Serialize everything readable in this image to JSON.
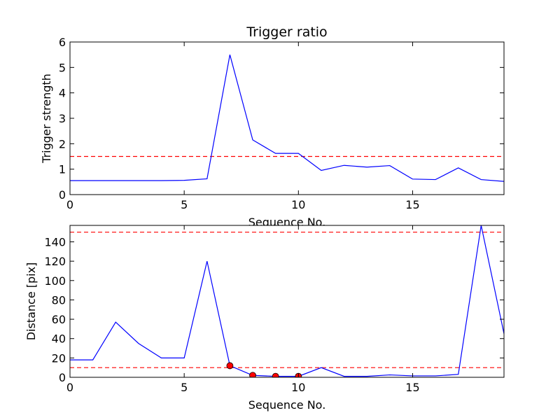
{
  "chart_data": [
    {
      "type": "line",
      "title": "Trigger ratio",
      "xlabel": "Sequence No.",
      "ylabel": "Trigger strength",
      "xlim": [
        0,
        19
      ],
      "ylim": [
        0,
        6
      ],
      "xticks": [
        0,
        5,
        10,
        15
      ],
      "yticks": [
        0,
        1,
        2,
        3,
        4,
        5,
        6
      ],
      "grid": false,
      "series": [
        {
          "color": "#0000ff",
          "x": [
            0,
            1,
            2,
            3,
            4,
            5,
            6,
            7,
            8,
            9,
            10,
            11,
            12,
            13,
            14,
            15,
            16,
            17,
            18,
            19
          ],
          "y": [
            0.55,
            0.55,
            0.55,
            0.55,
            0.55,
            0.56,
            0.62,
            5.5,
            2.15,
            1.62,
            1.62,
            0.95,
            1.15,
            1.08,
            1.14,
            0.61,
            0.59,
            1.05,
            0.59,
            0.52
          ]
        }
      ],
      "hlines": [
        {
          "y": 1.5,
          "color": "#ff0000",
          "style": "dashed"
        }
      ]
    },
    {
      "type": "line",
      "title": "",
      "xlabel": "Sequence No.",
      "ylabel": "Distance [pix]",
      "xlim": [
        0,
        19
      ],
      "ylim": [
        0,
        157
      ],
      "xticks": [
        0,
        5,
        10,
        15
      ],
      "yticks": [
        0,
        20,
        40,
        60,
        80,
        100,
        120,
        140
      ],
      "grid": false,
      "series": [
        {
          "color": "#0000ff",
          "x": [
            0,
            1,
            2,
            3,
            4,
            5,
            6,
            7,
            8,
            9,
            10,
            11,
            12,
            13,
            14,
            15,
            16,
            17,
            18,
            19
          ],
          "y": [
            18,
            18,
            57,
            35,
            20,
            20,
            120,
            12,
            2,
            1,
            1,
            10,
            1,
            1,
            2.5,
            1.5,
            1.5,
            3,
            157,
            45
          ]
        }
      ],
      "hlines": [
        {
          "y": 150,
          "color": "#ff0000",
          "style": "dashed"
        },
        {
          "y": 10,
          "color": "#ff0000",
          "style": "dashed"
        }
      ],
      "markers": {
        "color": "#ff0000",
        "x": [
          7,
          8,
          9,
          10
        ],
        "y": [
          12,
          2,
          1,
          1
        ]
      }
    }
  ]
}
